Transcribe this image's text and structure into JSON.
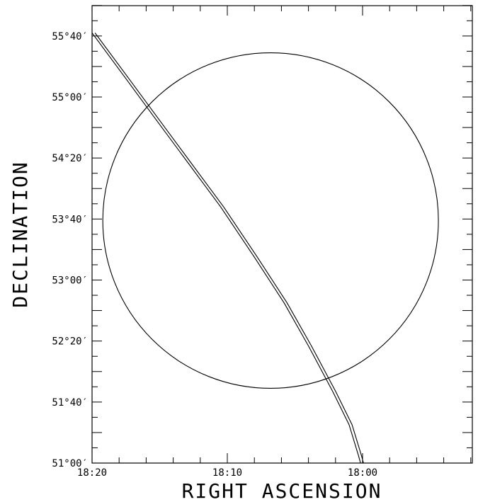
{
  "chart_data": {
    "type": "line",
    "title": "",
    "xlabel": "RIGHT ASCENSION",
    "ylabel": "DECLINATION",
    "xlim": [
      "18:20",
      "17:52"
    ],
    "ylim": [
      51.0,
      55.8333
    ],
    "x_tick_labels": [
      {
        "value": "18:20",
        "ra_min": 1100
      },
      {
        "value": "18:10",
        "ra_min": 1090
      },
      {
        "value": "18:00",
        "ra_min": 1080
      }
    ],
    "y_tick_labels": [
      {
        "value": "51°00′",
        "dec": 51.0
      },
      {
        "value": "51°40′",
        "dec": 51.6667
      },
      {
        "value": "52°20′",
        "dec": 52.3333
      },
      {
        "value": "53°00′",
        "dec": 53.0
      },
      {
        "value": "53°40′",
        "dec": 53.6667
      },
      {
        "value": "54°20′",
        "dec": 54.3333
      },
      {
        "value": "55°00′",
        "dec": 55.0
      },
      {
        "value": "55°40′",
        "dec": 55.6667
      }
    ],
    "circle": {
      "center_ra_min": 1086.8,
      "center_dec": 53.65,
      "radius_dec": 1.8333
    },
    "track": [
      [
        1100.0,
        55.7
      ],
      [
        1097.5,
        55.2
      ],
      [
        1095.5,
        54.8
      ],
      [
        1093.0,
        54.3
      ],
      [
        1090.5,
        53.8
      ],
      [
        1088.0,
        53.25
      ],
      [
        1085.8,
        52.75
      ],
      [
        1084.0,
        52.28
      ],
      [
        1082.2,
        51.78
      ],
      [
        1081.0,
        51.42
      ],
      [
        1080.3,
        51.08
      ],
      [
        1080.15,
        51.0
      ]
    ],
    "track_offset_ra_min": 0.22,
    "grid": false
  }
}
